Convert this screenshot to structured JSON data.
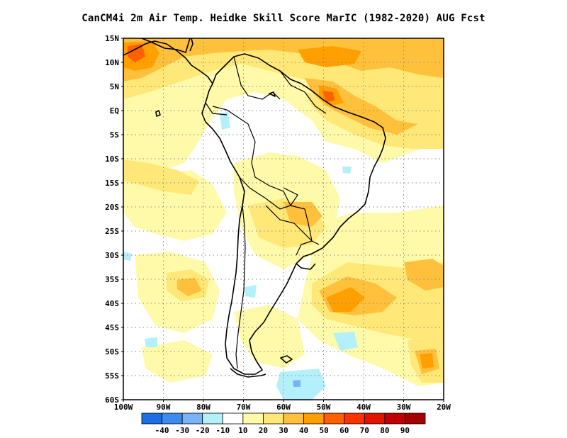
{
  "title": "CanCM4i  2m Air Temp. Heidke Skill Score MarIC (1982-2020) AUG Fcst",
  "map": {
    "lon_range": [
      -100,
      -20
    ],
    "lat_range": [
      -60,
      15
    ],
    "lat_ticks": [
      {
        "value": 15,
        "label": "15N"
      },
      {
        "value": 10,
        "label": "10N"
      },
      {
        "value": 5,
        "label": "5N"
      },
      {
        "value": 0,
        "label": "EQ"
      },
      {
        "value": -5,
        "label": "5S"
      },
      {
        "value": -10,
        "label": "10S"
      },
      {
        "value": -15,
        "label": "15S"
      },
      {
        "value": -20,
        "label": "20S"
      },
      {
        "value": -25,
        "label": "25S"
      },
      {
        "value": -30,
        "label": "30S"
      },
      {
        "value": -35,
        "label": "35S"
      },
      {
        "value": -40,
        "label": "40S"
      },
      {
        "value": -45,
        "label": "45S"
      },
      {
        "value": -50,
        "label": "50S"
      },
      {
        "value": -55,
        "label": "55S"
      },
      {
        "value": -60,
        "label": "60S"
      }
    ],
    "lon_ticks": [
      {
        "value": -100,
        "label": "100W"
      },
      {
        "value": -90,
        "label": "90W"
      },
      {
        "value": -80,
        "label": "80W"
      },
      {
        "value": -70,
        "label": "70W"
      },
      {
        "value": -60,
        "label": "60W"
      },
      {
        "value": -50,
        "label": "50W"
      },
      {
        "value": -40,
        "label": "40W"
      },
      {
        "value": -30,
        "label": "30W"
      },
      {
        "value": -20,
        "label": "20W"
      }
    ],
    "grid": true,
    "colorbar": {
      "bins": [
        {
          "color": "#1e6ee6"
        },
        {
          "color": "#3c8cf0"
        },
        {
          "color": "#78b4f5"
        },
        {
          "color": "#b4f0fa"
        },
        {
          "color": "#ffffff"
        },
        {
          "color": "#fffaaa"
        },
        {
          "color": "#ffe878"
        },
        {
          "color": "#ffc03c"
        },
        {
          "color": "#ffa000"
        },
        {
          "color": "#ff6000"
        },
        {
          "color": "#ff3200"
        },
        {
          "color": "#e11400"
        },
        {
          "color": "#c00000"
        },
        {
          "color": "#a50000"
        }
      ],
      "labels": [
        "-40",
        "-30",
        "-20",
        "-10",
        "10",
        "20",
        "30",
        "40",
        "50",
        "60",
        "70",
        "80",
        "90"
      ]
    }
  }
}
